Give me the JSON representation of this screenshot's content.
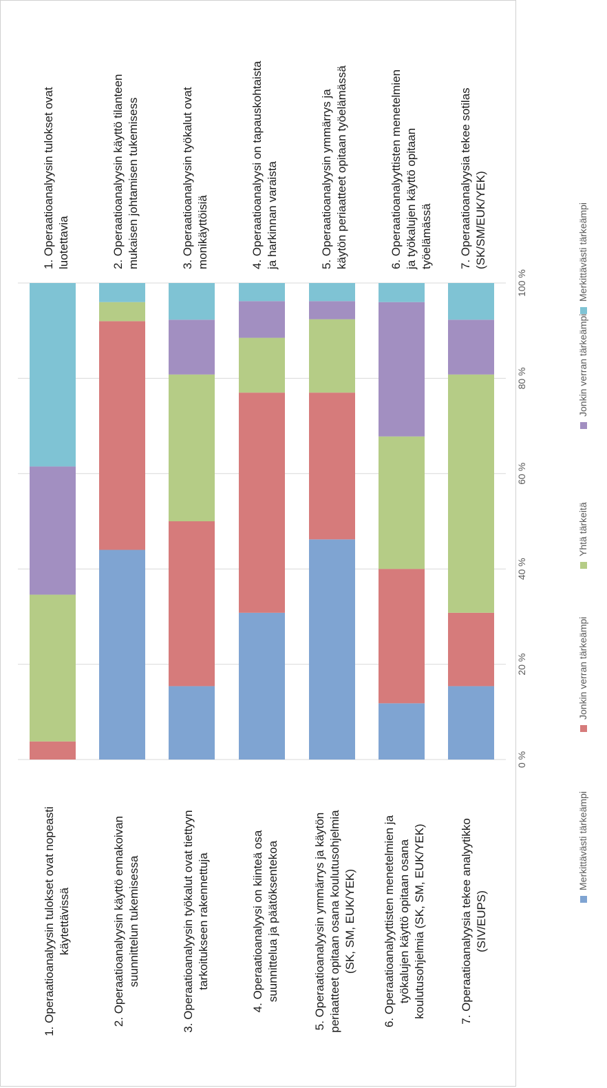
{
  "chart_data": {
    "type": "bar",
    "orientation": "horizontal-stacked-100-rotated",
    "categories_bottom": [
      [
        "1. Operaatioanalyysin tulokset ovat nopeasti",
        "käytettävissä"
      ],
      [
        "2. Operaatioanalyysin käyttö ennakoivan",
        "suunnittelun tukemisessa"
      ],
      [
        "3. Operaatioanalyysin työkalut ovat tiettyyn",
        "tarkoitukseen rakennettuja"
      ],
      [
        "4. Operaatioanalyysi on kiinteä osa",
        "suunnittelua ja päätöksentekoa"
      ],
      [
        "5. Operaatioanalyysin ymmärrys ja käytön",
        "periaatteet opitaan osana koulutusohjelmia",
        "(SK, SM, EUK/YEK)"
      ],
      [
        "6. Operaatioanalyyttisten menetelmien ja",
        "työkalujen käyttö opitaan osana",
        "koulutusohjelmia (SK, SM, EUK/YEK)"
      ],
      [
        "7. Operaatioanalyysia tekee analyytikko",
        "(SIV/EUPS)"
      ]
    ],
    "categories_top": [
      [
        "1. Operaatioanalyysin tulokset ovat",
        "luotettavia"
      ],
      [
        "2. Operaatioanalyysin käyttö tilanteen",
        "mukaisen johtamisen tukemisess"
      ],
      [
        "3. Operaatioanalyysin työkalut ovat",
        "monikäyttöisiä"
      ],
      [
        "4. Operaatioanalyysi on tapauskohtaista",
        "ja harkinnan varaista"
      ],
      [
        "5. Operaatioanalyysin ymmärrys ja",
        "käytön periaatteet opitaan työelämässä"
      ],
      [
        "6. Operaatioanalyyttisten menetelmien",
        "ja työkalujen käyttö opitaan",
        "työelämässä"
      ],
      [
        "7. Operaatioanalyysia tekee sotilas",
        "(SK/SM/EUK/YEK)"
      ]
    ],
    "series": [
      {
        "name": "Merkittävästi tärkeämpi",
        "color": "#7fa4d2",
        "values": [
          0,
          44,
          15.4,
          30.8,
          46.2,
          11.8,
          15.4
        ]
      },
      {
        "name": "Jonkin verran tärkeämpi",
        "color": "#d67b7b",
        "values": [
          3.8,
          48,
          34.6,
          46.2,
          30.8,
          28.2,
          15.4
        ]
      },
      {
        "name": "Yhtä tärkeitä",
        "color": "#b5cc86",
        "values": [
          30.8,
          4,
          30.8,
          11.5,
          15.4,
          27.8,
          50
        ]
      },
      {
        "name": "Jonkin verran tärkeämpi",
        "color": "#a28fc1",
        "values": [
          26.9,
          0,
          11.5,
          7.7,
          3.8,
          28.2,
          11.5
        ]
      },
      {
        "name": "Merkittävästi tärkeämpi",
        "color": "#7fc3d4",
        "values": [
          38.5,
          4,
          7.7,
          3.8,
          3.8,
          4,
          7.7
        ]
      }
    ],
    "axis": {
      "ticks": [
        "0 %",
        "20 %",
        "40 %",
        "60 %",
        "80 %",
        "100 %"
      ],
      "tick_values": [
        0,
        20,
        40,
        60,
        80,
        100
      ],
      "range": [
        0,
        100
      ],
      "gridlines": true
    },
    "legend": {
      "position": "bottom",
      "entries": [
        "Merkittävästi tärkeämpi",
        "Jonkin verran tärkeämpi",
        "Yhtä tärkeitä",
        "Jonkin verran tärkeämpi",
        "Merkittävästi tärkeämpi"
      ]
    }
  }
}
